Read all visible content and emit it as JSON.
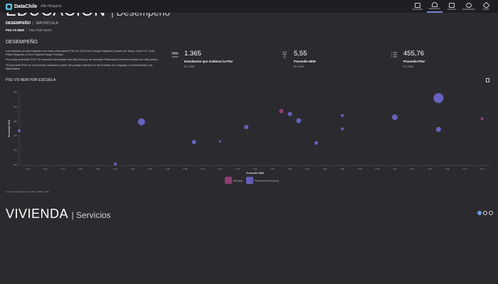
{
  "header": {
    "brand": "DataChile",
    "location": "Alto Hospicio",
    "nav": [
      {
        "label": "ECONOMÍA",
        "icon": "briefcase-icon"
      },
      {
        "label": "EDUCACIÓN",
        "icon": "graduation-cap-icon",
        "active": true
      },
      {
        "label": "VIVIENDA",
        "icon": "house-icon"
      },
      {
        "label": "DEMOGRAFÍA",
        "icon": "people-icon"
      },
      {
        "label": "SALUD",
        "icon": "heart-pulse-icon"
      }
    ]
  },
  "section": {
    "title": "EDUCACIÓN",
    "subtitle": "| Desempeño"
  },
  "tabs": {
    "primary": {
      "active": "DESEMPEÑO",
      "separator": "|",
      "other": "MATRÍCULA"
    },
    "secondary": {
      "active": "PSU VS NEM",
      "separator": "|",
      "other": "PSU POR SEXO"
    }
  },
  "desempeno": {
    "heading": "DESEMPEÑO",
    "paragraphs": [
      "Las escuelas de Alto Hospicio con mejor desempeño PSU en 2016 son Colegio Sagrado Corazón de Jesús, Liceo S.S. Juan Pablo Segundo y Liceo Superior Diego Portales.",
      "El puntaje promedio PSU* de escuelas Municipales fue 460 puntos y de escuelas Particulares Subvencionadas fue 456 puntos.",
      "*El promedio PSU es el promedio calculado a partir del puntaje obtenido en las Pruebas de Lenguaje y Comunicación y de Matemática."
    ]
  },
  "stats": [
    {
      "value": "1.365",
      "label": "Estudiantes que rindieron la PSU",
      "year": "En 2016",
      "icon": "students-icon"
    },
    {
      "value": "5,55",
      "label": "Promedio NEM",
      "year": "En 2016",
      "icon": "trophy-icon"
    },
    {
      "value": "455,76",
      "label": "Promedio PSU",
      "year": "En 2016",
      "icon": "list-icon"
    }
  ],
  "chart_section": {
    "heading": "PSU VS NEM POR ESCUELA",
    "source": "Fuente: Rendimiento escolar y PSU - DEMRE - 2016"
  },
  "chart_data": {
    "type": "scatter",
    "xlabel": "Promedio NEM",
    "ylabel": "Promedio PSU",
    "xlim": [
      5.19,
      5.73
    ],
    "ylim": [
      300,
      550
    ],
    "x_ticks": [
      "5.20",
      "5.22",
      "5.24",
      "5.26",
      "5.28",
      "5.30",
      "5.32",
      "5.34",
      "5.36",
      "5.38",
      "5.40",
      "5.42",
      "5.44",
      "5.46",
      "5.48",
      "5.50",
      "5.52",
      "5.54",
      "5.56",
      "5.58",
      "5.60",
      "5.62",
      "5.64",
      "5.66",
      "5.68",
      "5.70",
      "5.72"
    ],
    "y_ticks": [
      "300",
      "350",
      "400",
      "450",
      "500",
      "550"
    ],
    "grid": false,
    "legend_position": "bottom-center",
    "series": [
      {
        "name": "Municipal",
        "color": "#a0407e",
        "points": [
          {
            "x": 5.49,
            "y": 485,
            "size": 3
          },
          {
            "x": 5.72,
            "y": 459,
            "size": 2
          }
        ]
      },
      {
        "name": "Particular Subvencionado",
        "color": "#6d68cf",
        "points": [
          {
            "x": 5.19,
            "y": 417,
            "size": 2
          },
          {
            "x": 5.3,
            "y": 303,
            "size": 2
          },
          {
            "x": 5.33,
            "y": 448,
            "size": 5
          },
          {
            "x": 5.39,
            "y": 378,
            "size": 3
          },
          {
            "x": 5.42,
            "y": 381,
            "size": 1.5
          },
          {
            "x": 5.45,
            "y": 430,
            "size": 3
          },
          {
            "x": 5.5,
            "y": 475,
            "size": 3
          },
          {
            "x": 5.51,
            "y": 452,
            "size": 3.5
          },
          {
            "x": 5.53,
            "y": 375,
            "size": 2.5
          },
          {
            "x": 5.56,
            "y": 470,
            "size": 2
          },
          {
            "x": 5.56,
            "y": 424,
            "size": 2
          },
          {
            "x": 5.62,
            "y": 464,
            "size": 4
          },
          {
            "x": 5.67,
            "y": 422,
            "size": 3.5
          },
          {
            "x": 5.67,
            "y": 530,
            "size": 7
          }
        ]
      }
    ]
  },
  "lower_section": {
    "title": "VIVIENDA",
    "subtitle": "| Servicios"
  },
  "pager": {
    "dots": 3,
    "active": 0
  }
}
